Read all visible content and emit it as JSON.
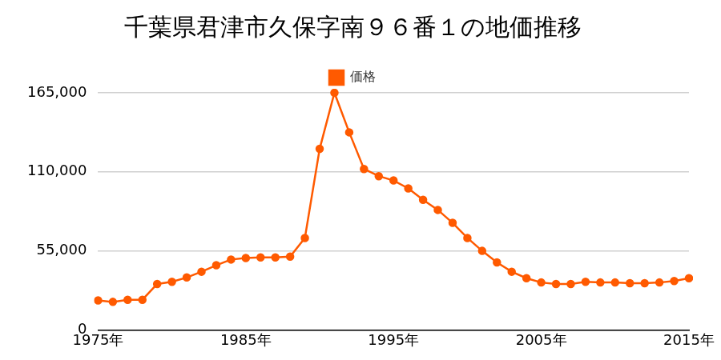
{
  "chart_data": {
    "type": "line",
    "title": "千葉県君津市久保字南９６番１の地価推移",
    "x": [
      1975,
      1976,
      1977,
      1978,
      1979,
      1980,
      1981,
      1982,
      1983,
      1984,
      1985,
      1986,
      1987,
      1988,
      1989,
      1990,
      1991,
      1992,
      1993,
      1994,
      1995,
      1996,
      1997,
      1998,
      1999,
      2000,
      2001,
      2002,
      2003,
      2004,
      2005,
      2006,
      2007,
      2008,
      2009,
      2010,
      2011,
      2012,
      2013,
      2014,
      2015
    ],
    "series": [
      {
        "name": "価格",
        "color": "#ff5a00",
        "marker": "circle",
        "values": [
          20500,
          19500,
          21000,
          21000,
          32000,
          33500,
          36500,
          40500,
          45000,
          49000,
          50000,
          50500,
          50500,
          51000,
          64000,
          126000,
          165000,
          137500,
          112000,
          107000,
          104000,
          98500,
          90500,
          83500,
          74500,
          64000,
          55000,
          47000,
          40500,
          36000,
          33000,
          32000,
          32000,
          33500,
          33000,
          33000,
          32500,
          32500,
          33000,
          34000,
          36000
        ]
      }
    ],
    "xlim": [
      1975,
      2015
    ],
    "xticks": [
      {
        "value": 1975,
        "label": "1975年"
      },
      {
        "value": 1985,
        "label": "1985年"
      },
      {
        "value": 1995,
        "label": "1995年"
      },
      {
        "value": 2005,
        "label": "2005年"
      },
      {
        "value": 2015,
        "label": "2015年"
      }
    ],
    "ylim": [
      0,
      165000
    ],
    "yticks": [
      0,
      {
        "value": 55000,
        "label": "55,000"
      },
      {
        "value": 110000,
        "label": "110,000"
      },
      {
        "value": 165000,
        "label": "165,000"
      }
    ],
    "grid": "y",
    "legend": "top"
  }
}
